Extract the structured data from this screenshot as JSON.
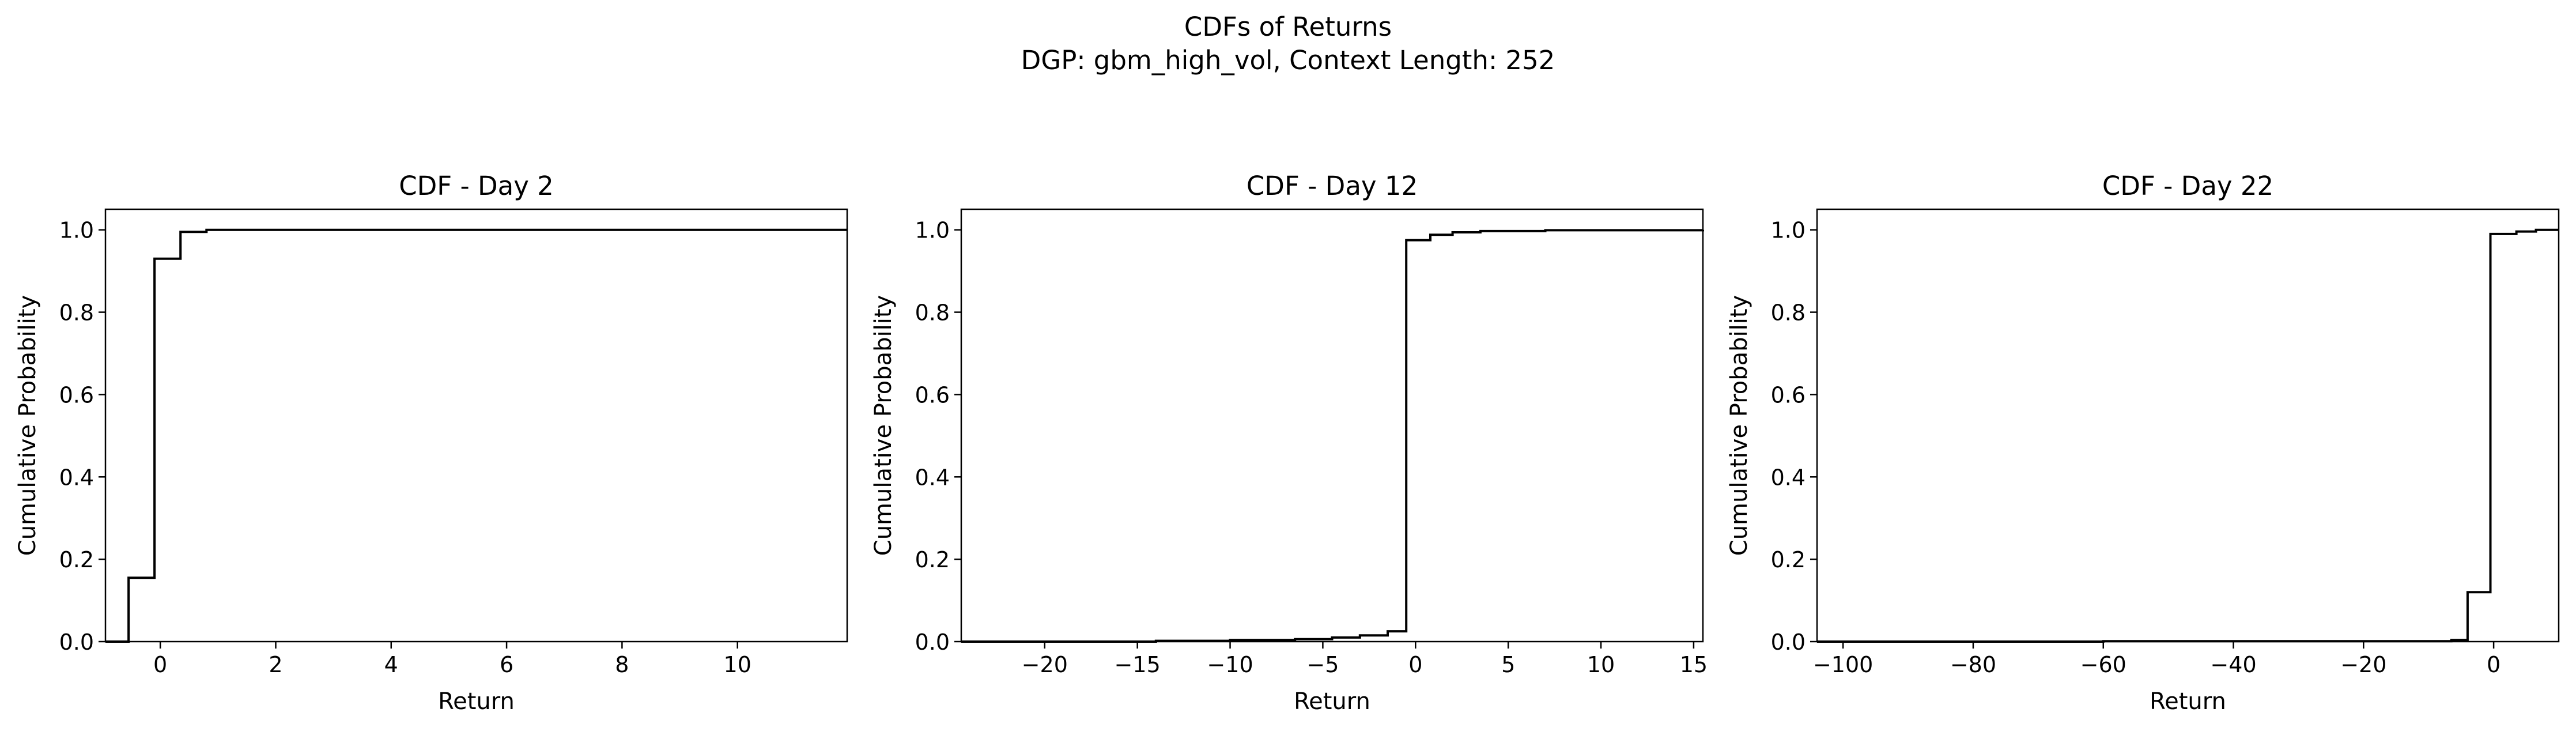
{
  "figure": {
    "title_line1": "CDFs of Returns",
    "title_line2": "DGP: gbm_high_vol, Context Length: 252"
  },
  "chart_data": [
    {
      "type": "line",
      "step": "post",
      "title": "CDF - Day 2",
      "xlabel": "Return",
      "ylabel": "Cumulative Probability",
      "xlim": [
        -0.95,
        11.9
      ],
      "ylim": [
        0.0,
        1.05
      ],
      "xticks": [
        0,
        2,
        4,
        6,
        8,
        10
      ],
      "yticks": [
        0.0,
        0.2,
        0.4,
        0.6,
        0.8,
        1.0
      ],
      "grid": false,
      "legend": "none",
      "x": [
        -0.95,
        -0.55,
        -0.1,
        0.35,
        0.8,
        11.5,
        11.9
      ],
      "y": [
        0.0,
        0.155,
        0.93,
        0.995,
        1.0,
        1.0,
        1.0
      ]
    },
    {
      "type": "line",
      "step": "post",
      "title": "CDF - Day 12",
      "xlabel": "Return",
      "ylabel": "Cumulative Probability",
      "xlim": [
        -24.5,
        15.5
      ],
      "ylim": [
        0.0,
        1.05
      ],
      "xticks": [
        -20,
        -15,
        -10,
        -5,
        0,
        5,
        10,
        15
      ],
      "yticks": [
        0.0,
        0.2,
        0.4,
        0.6,
        0.8,
        1.0
      ],
      "grid": false,
      "legend": "none",
      "x": [
        -24.5,
        -14.0,
        -10.0,
        -6.5,
        -4.5,
        -3.0,
        -1.5,
        -0.5,
        0.8,
        2.0,
        3.5,
        7.0,
        15.5
      ],
      "y": [
        0.0,
        0.002,
        0.004,
        0.006,
        0.01,
        0.015,
        0.025,
        0.975,
        0.988,
        0.994,
        0.997,
        0.999,
        1.0
      ]
    },
    {
      "type": "line",
      "step": "post",
      "title": "CDF - Day 22",
      "xlabel": "Return",
      "ylabel": "Cumulative Probability",
      "xlim": [
        -104,
        10
      ],
      "ylim": [
        0.0,
        1.05
      ],
      "xticks": [
        -100,
        -80,
        -60,
        -40,
        -20,
        0
      ],
      "yticks": [
        0.0,
        0.2,
        0.4,
        0.6,
        0.8,
        1.0
      ],
      "grid": false,
      "legend": "none",
      "x": [
        -104,
        -60,
        -6.5,
        -4.0,
        -0.5,
        3.5,
        6.5,
        10
      ],
      "y": [
        0.0,
        0.001,
        0.004,
        0.12,
        0.99,
        0.996,
        1.0,
        1.0
      ]
    }
  ]
}
